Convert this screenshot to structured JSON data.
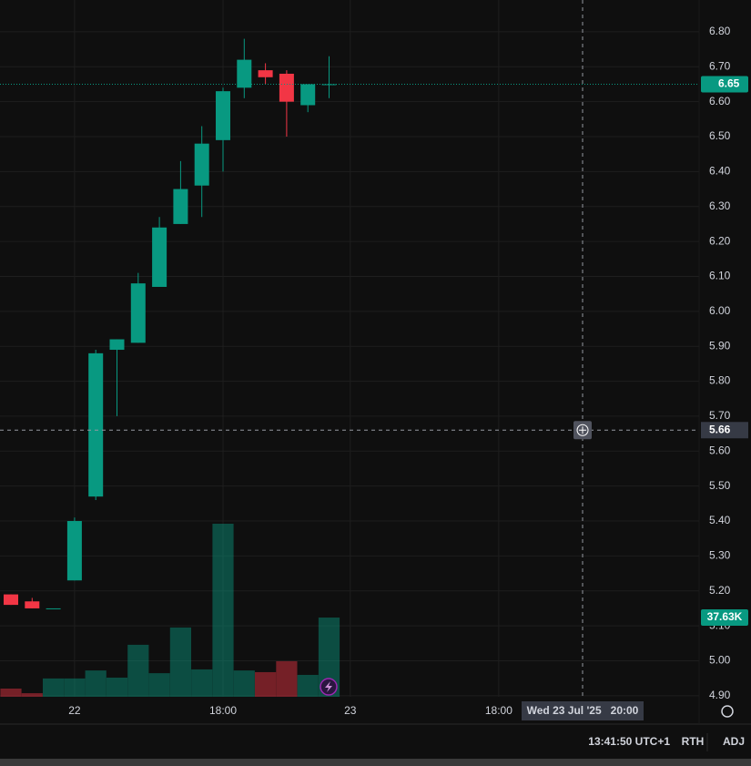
{
  "chart_data": {
    "type": "candlestick",
    "categories": [
      null,
      null,
      null,
      "22",
      null,
      null,
      null,
      null,
      null,
      null,
      "18:00",
      null,
      null,
      null,
      null,
      null,
      "23",
      null,
      null,
      null,
      null,
      null,
      null,
      "18:00",
      null,
      null,
      null,
      null,
      null,
      null,
      null,
      null,
      null
    ],
    "open": [
      5.19,
      5.17,
      5.15,
      5.23,
      5.47,
      5.89,
      5.91,
      6.07,
      6.25,
      6.36,
      6.49,
      6.64,
      6.69,
      6.68,
      6.59,
      6.65,
      null,
      null,
      null,
      null,
      null,
      null,
      null,
      null,
      null,
      null,
      null,
      null,
      null,
      null,
      null,
      null,
      null
    ],
    "high": [
      5.19,
      5.18,
      5.15,
      5.41,
      5.89,
      5.92,
      6.11,
      6.27,
      6.43,
      6.53,
      6.64,
      6.78,
      6.71,
      6.69,
      6.65,
      6.73,
      null,
      null,
      null,
      null,
      null,
      null,
      null,
      null,
      null,
      null,
      null,
      null,
      null,
      null,
      null,
      null,
      null
    ],
    "low": [
      5.16,
      5.15,
      5.15,
      5.23,
      5.46,
      5.7,
      5.91,
      6.07,
      6.25,
      6.27,
      6.4,
      6.61,
      6.65,
      6.5,
      6.57,
      6.61,
      null,
      null,
      null,
      null,
      null,
      null,
      null,
      null,
      null,
      null,
      null,
      null,
      null,
      null,
      null,
      null,
      null
    ],
    "close": [
      5.16,
      5.15,
      5.15,
      5.4,
      5.88,
      5.92,
      6.08,
      6.24,
      6.35,
      6.48,
      6.63,
      6.72,
      6.67,
      6.6,
      6.65,
      6.65,
      null,
      null,
      null,
      null,
      null,
      null,
      null,
      null,
      null,
      null,
      null,
      null,
      null,
      null,
      null,
      null,
      null
    ],
    "volume": [
      3900,
      1700,
      8700,
      8700,
      12500,
      9100,
      24700,
      11200,
      32900,
      13000,
      82200,
      12500,
      11700,
      16900,
      10400,
      37630,
      null,
      null,
      null,
      null,
      null,
      null,
      null,
      null,
      null,
      null,
      null,
      null,
      null,
      null,
      null,
      null,
      null
    ],
    "volume_value_labels": [
      null,
      null,
      null,
      null,
      null,
      null,
      null,
      null,
      null,
      null,
      null,
      null,
      null,
      null,
      null,
      "37.63K",
      null,
      null,
      null,
      null,
      null,
      null,
      null,
      null,
      null,
      null,
      null,
      null,
      null,
      null,
      null,
      null,
      null
    ],
    "up_color": "#089981",
    "down_color": "#f23645",
    "ylim": [
      4.897,
      6.891
    ],
    "yticks": [
      {
        "value": 4.9,
        "label": "4.90"
      },
      {
        "value": 5.0,
        "label": "5.00"
      },
      {
        "value": 5.1,
        "label": "5.10"
      },
      {
        "value": 5.2,
        "label": "5.20"
      },
      {
        "value": 5.3,
        "label": "5.30"
      },
      {
        "value": 5.4,
        "label": "5.40"
      },
      {
        "value": 5.5,
        "label": "5.50"
      },
      {
        "value": 5.6,
        "label": "5.60"
      },
      {
        "value": 5.7,
        "label": "5.70"
      },
      {
        "value": 5.8,
        "label": "5.80"
      },
      {
        "value": 5.9,
        "label": "5.90"
      },
      {
        "value": 6.0,
        "label": "6.00"
      },
      {
        "value": 6.1,
        "label": "6.10"
      },
      {
        "value": 6.2,
        "label": "6.20"
      },
      {
        "value": 6.3,
        "label": "6.30"
      },
      {
        "value": 6.4,
        "label": "6.40"
      },
      {
        "value": 6.5,
        "label": "6.50"
      },
      {
        "value": 6.6,
        "label": "6.60"
      },
      {
        "value": 6.7,
        "label": "6.70"
      },
      {
        "value": 6.8,
        "label": "6.80"
      }
    ],
    "grid": true,
    "last_price": {
      "value": 6.65,
      "label": "6.65"
    },
    "crosshair": {
      "price": {
        "value": 5.66,
        "label": "5.66"
      },
      "time_label": "Wed 23 Jul '25   20:00"
    }
  },
  "status_bar": {
    "time": "13:41:50 UTC+1",
    "items": [
      "RTH",
      "ADJ"
    ]
  }
}
